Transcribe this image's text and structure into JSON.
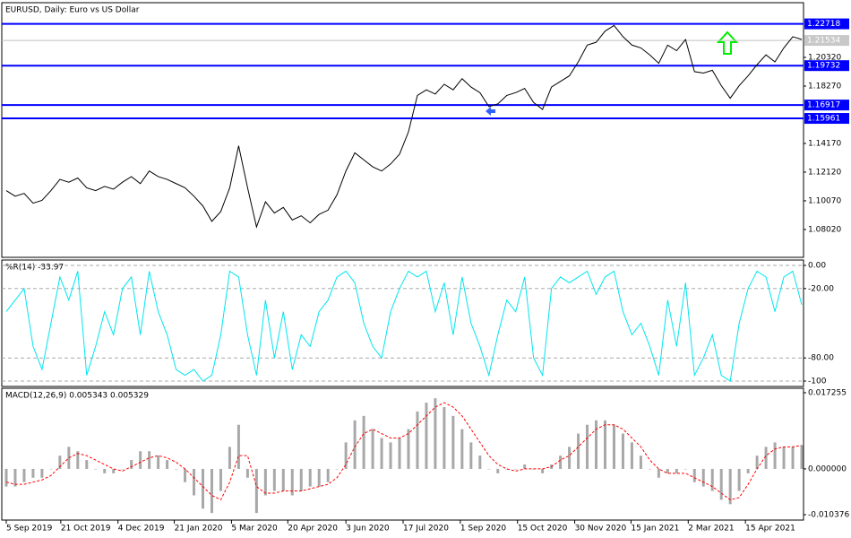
{
  "chart_data": [
    {
      "type": "line",
      "title": "EURUSD, Daily:  Euro vs US Dollar",
      "color": "#000000",
      "values": [
        1.108,
        1.104,
        1.106,
        1.099,
        1.101,
        1.108,
        1.116,
        1.114,
        1.117,
        1.11,
        1.108,
        1.111,
        1.109,
        1.114,
        1.118,
        1.113,
        1.122,
        1.118,
        1.116,
        1.113,
        1.11,
        1.104,
        1.097,
        1.086,
        1.093,
        1.11,
        1.14,
        1.11,
        1.082,
        1.1,
        1.092,
        1.096,
        1.087,
        1.09,
        1.085,
        1.091,
        1.094,
        1.105,
        1.122,
        1.135,
        1.13,
        1.125,
        1.122,
        1.127,
        1.134,
        1.15,
        1.176,
        1.18,
        1.177,
        1.184,
        1.18,
        1.188,
        1.182,
        1.178,
        1.168,
        1.17,
        1.176,
        1.178,
        1.181,
        1.171,
        1.166,
        1.182,
        1.186,
        1.19,
        1.2,
        1.212,
        1.214,
        1.222,
        1.226,
        1.218,
        1.212,
        1.21,
        1.205,
        1.199,
        1.212,
        1.208,
        1.216,
        1.193,
        1.192,
        1.194,
        1.183,
        1.174,
        1.183,
        1.19,
        1.198,
        1.205,
        1.2,
        1.21,
        1.218,
        1.216
      ],
      "xlim": [
        -0.5,
        89.2
      ],
      "ylim": [
        1.0603,
        1.2423
      ],
      "yticks": [
        {
          "value": 1.0802,
          "label": "1.08020"
        },
        {
          "value": 1.1007,
          "label": "1.10070"
        },
        {
          "value": 1.1212,
          "label": "1.12120"
        },
        {
          "value": 1.1417,
          "label": "1.14170"
        },
        {
          "value": 1.1827,
          "label": "1.18270"
        },
        {
          "value": 1.2032,
          "label": "1.20320"
        }
      ],
      "levels": [
        1.22718,
        1.19732,
        1.16917,
        1.15961
      ],
      "level_color": "#0000ff",
      "last_price": 1.21534
    },
    {
      "type": "line",
      "title": "%R(14) -33.97",
      "color": "#00e5ee",
      "grid": true,
      "values": [
        -40,
        -30,
        -20,
        -70,
        -90,
        -50,
        -10,
        -30,
        -5,
        -95,
        -70,
        -40,
        -60,
        -20,
        -10,
        -60,
        -5,
        -40,
        -60,
        -90,
        -95,
        -90,
        -100,
        -95,
        -60,
        -5,
        -10,
        -60,
        -95,
        -30,
        -80,
        -40,
        -90,
        -60,
        -70,
        -40,
        -30,
        -10,
        -5,
        -15,
        -50,
        -70,
        -80,
        -40,
        -20,
        -5,
        -10,
        -5,
        -40,
        -15,
        -60,
        -10,
        -50,
        -70,
        -95,
        -60,
        -30,
        -40,
        -10,
        -80,
        -95,
        -20,
        -10,
        -15,
        -10,
        -5,
        -25,
        -10,
        -5,
        -40,
        -60,
        -50,
        -70,
        -95,
        -30,
        -70,
        -15,
        -95,
        -80,
        -60,
        -95,
        -100,
        -50,
        -20,
        -5,
        -10,
        -40,
        -10,
        -5,
        -33.97
      ],
      "xlim": [
        -0.5,
        89.2
      ],
      "ylim": [
        -104.65,
        4.65
      ],
      "yticks": [
        {
          "value": 0,
          "label": "0.00"
        },
        {
          "value": -20,
          "label": "-20.00"
        },
        {
          "value": -80,
          "label": "-80.00"
        },
        -100
      ]
    },
    {
      "type": "bar",
      "title": "MACD(12,26,9) 0.005343 0.005329",
      "series": [
        {
          "type": "bar",
          "color": "#a8a8a8",
          "values": [
            -0.004,
            -0.004,
            -0.003,
            -0.002,
            -0.002,
            0,
            0.003,
            0.005,
            0.004,
            0.002,
            0,
            -0.001,
            -0.001,
            0,
            0.002,
            0.004,
            0.004,
            0.003,
            0.002,
            0,
            -0.003,
            -0.006,
            -0.009,
            -0.01,
            -0.005,
            0.005,
            0.01,
            -0.002,
            -0.01,
            -0.006,
            -0.005,
            -0.005,
            -0.006,
            -0.005,
            -0.004,
            -0.004,
            -0.003,
            0,
            0.006,
            0.011,
            0.012,
            0.009,
            0.007,
            0.006,
            0.007,
            0.009,
            0.013,
            0.015,
            0.016,
            0.014,
            0.012,
            0.009,
            0.006,
            0.003,
            0,
            -0.001,
            0,
            0,
            0.001,
            0,
            -0.001,
            0.001,
            0.003,
            0.005,
            0.008,
            0.01,
            0.011,
            0.011,
            0.01,
            0.008,
            0.006,
            0.003,
            0,
            -0.002,
            -0.001,
            -0.001,
            0,
            -0.003,
            -0.004,
            -0.005,
            -0.007,
            -0.008,
            -0.005,
            -0.001,
            0.003,
            0.005,
            0.006,
            0.005,
            0.005,
            0.005343
          ]
        },
        {
          "type": "line",
          "dash": true,
          "color": "#ff0000",
          "values": [
            -0.003,
            -0.0035,
            -0.0035,
            -0.003,
            -0.0025,
            -0.0015,
            0.0005,
            0.0025,
            0.0035,
            0.003,
            0.002,
            0.001,
            0,
            -0.0005,
            0.0005,
            0.0015,
            0.0025,
            0.003,
            0.0025,
            0.0015,
            0,
            -0.002,
            -0.004,
            -0.006,
            -0.007,
            -0.003,
            0.003,
            0.003,
            -0.004,
            -0.0055,
            -0.0055,
            -0.005,
            -0.005,
            -0.005,
            -0.0045,
            -0.004,
            -0.0035,
            -0.002,
            0.001,
            0.005,
            0.008,
            0.009,
            0.008,
            0.007,
            0.007,
            0.008,
            0.01,
            0.012,
            0.014,
            0.015,
            0.014,
            0.012,
            0.009,
            0.006,
            0.003,
            0.001,
            0,
            -0.0005,
            0,
            0,
            0,
            0.0005,
            0.002,
            0.003,
            0.005,
            0.007,
            0.009,
            0.01,
            0.01,
            0.009,
            0.007,
            0.005,
            0.002,
            0,
            -0.001,
            -0.001,
            -0.001,
            -0.002,
            -0.003,
            -0.004,
            -0.0055,
            -0.007,
            -0.0065,
            -0.0035,
            0,
            0.003,
            0.0045,
            0.005,
            0.005,
            0.005329
          ]
        }
      ],
      "xlim": [
        -0.5,
        89.2
      ],
      "ylim": [
        -0.011594,
        0.01827
      ],
      "yticks": [
        0.017255,
        {
          "value": 0,
          "label": "0.000000"
        },
        -0.010376
      ],
      "xticks": [
        {
          "value": 0,
          "label": "5 Sep 2019"
        },
        {
          "value": 6.1,
          "label": "21 Oct 2019"
        },
        {
          "value": 12.5,
          "label": "4 Dec 2019"
        },
        {
          "value": 18.8,
          "label": "21 Jan 2020"
        },
        {
          "value": 25.2,
          "label": "5 Mar 2020"
        },
        {
          "value": 31.5,
          "label": "20 Apr 2020"
        },
        {
          "value": 38,
          "label": "3 Jun 2020"
        },
        {
          "value": 44.4,
          "label": "17 Jul 2020"
        },
        {
          "value": 50.8,
          "label": "1 Sep 2020"
        },
        {
          "value": 57.2,
          "label": "15 Oct 2020"
        },
        {
          "value": 63.6,
          "label": "30 Nov 2020"
        },
        {
          "value": 69.9,
          "label": "15 Jan 2021"
        },
        {
          "value": 76.3,
          "label": "2 Mar 2021"
        },
        {
          "value": 82.7,
          "label": "15 Apr 2021"
        }
      ]
    }
  ]
}
